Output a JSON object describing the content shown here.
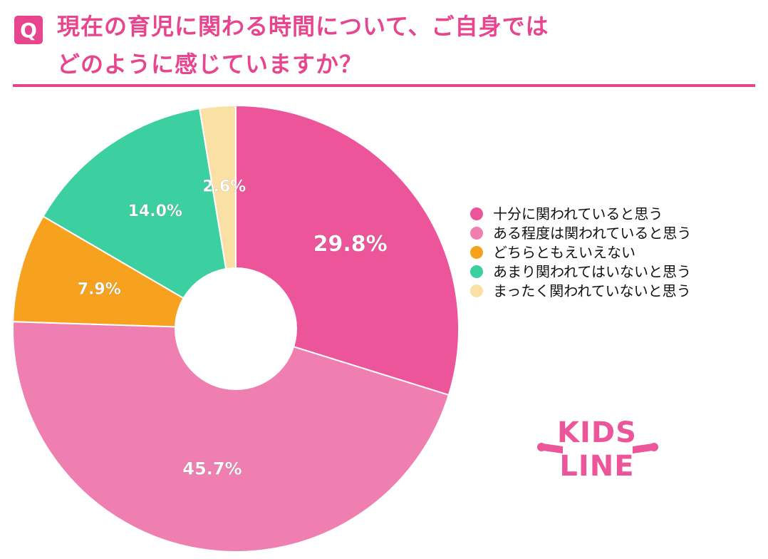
{
  "question_badge": "Q",
  "title": {
    "line1": "現在の育児に関わる時間について、ご自身では",
    "line2": "どのように感じていますか？"
  },
  "chart_data": {
    "type": "pie",
    "title": "現在の育児に関わる時間について、ご自身ではどのように感じていますか？",
    "slices": [
      {
        "label": "十分に関われていると思う",
        "value": 29.8,
        "display": "29.8%",
        "color": "#ec5599"
      },
      {
        "label": "ある程度は関われていると思う",
        "value": 45.7,
        "display": "45.7%",
        "color": "#ef7fb1"
      },
      {
        "label": "どちらともえいえない",
        "value": 7.9,
        "display": "7.9%",
        "color": "#f6a21e"
      },
      {
        "label": "あまり関われてはいないと思う",
        "value": 14.0,
        "display": "14.0%",
        "color": "#3ccf9f"
      },
      {
        "label": "まったく関われていないと思う",
        "value": 2.6,
        "display": "2.6%",
        "color": "#fbe0a6"
      }
    ],
    "start_angle": "12 o'clock",
    "direction": "clockwise",
    "hole": true,
    "legend_position": "right"
  },
  "logo": {
    "line1": "KIDS",
    "line2": "LINE",
    "color": "#ec5599"
  }
}
